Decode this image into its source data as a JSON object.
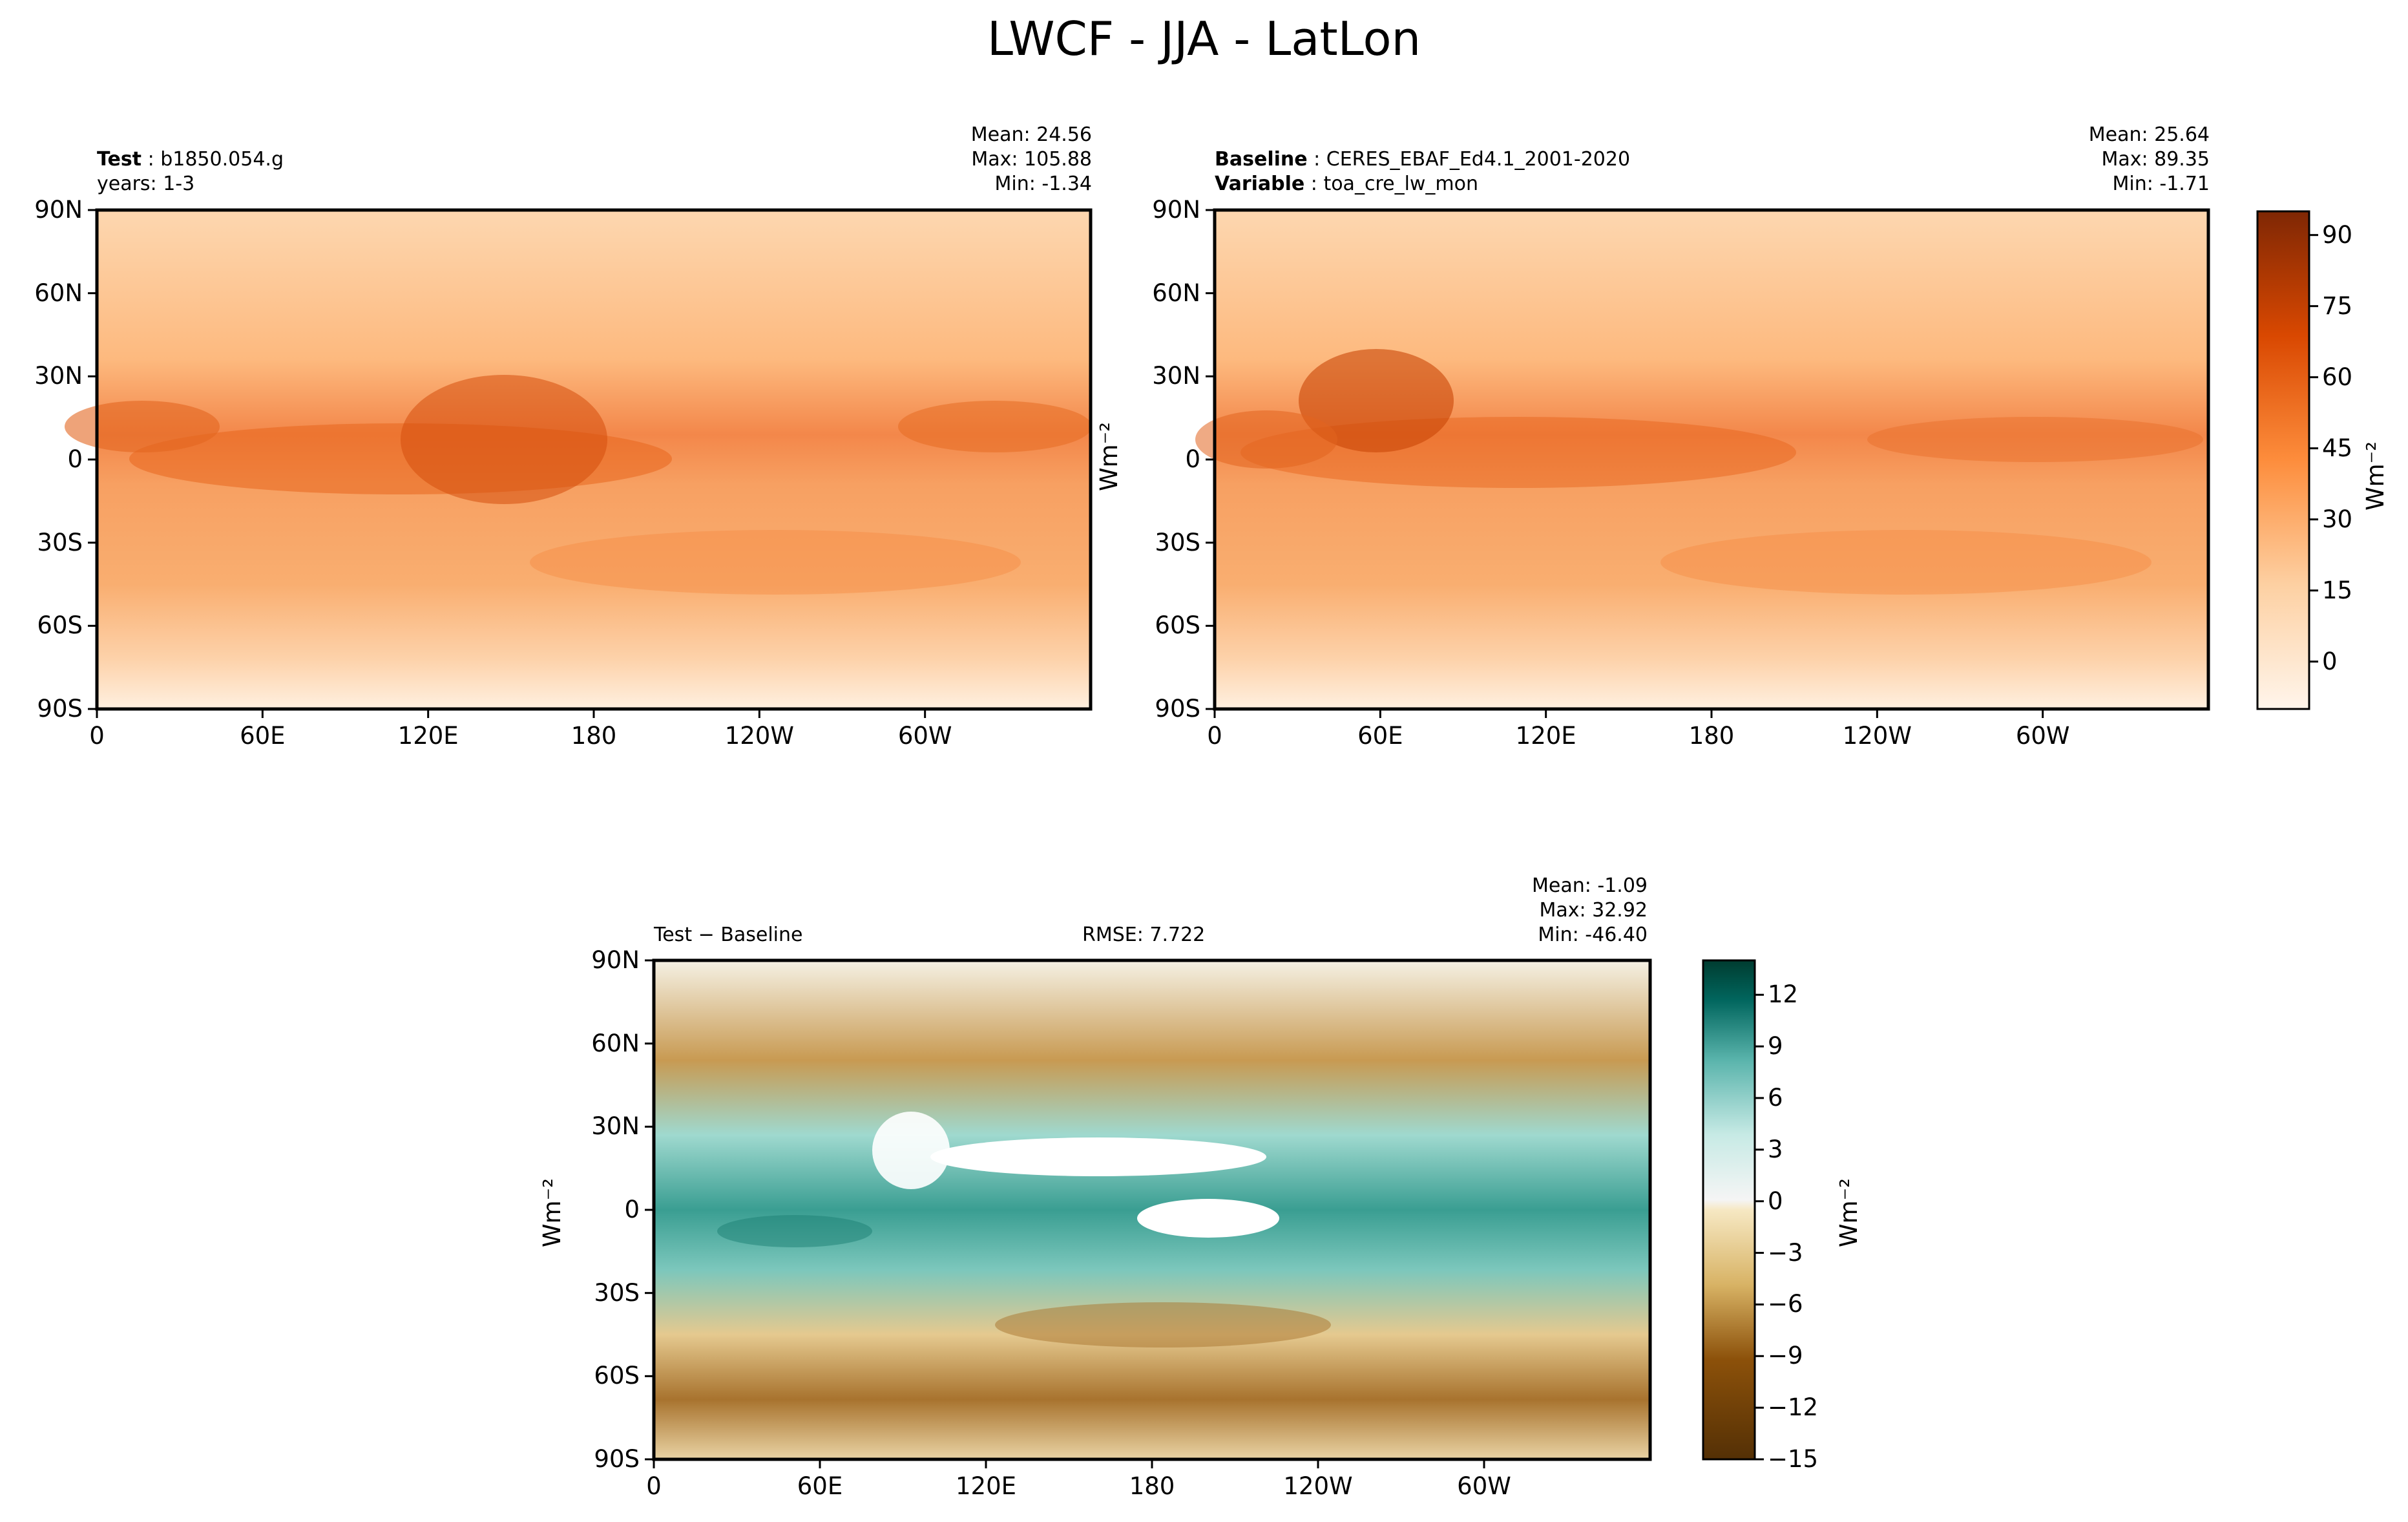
{
  "title": "LWCF - JJA - LatLon",
  "chart_data": [
    {
      "type": "heatmap",
      "id": "test",
      "label_bold": "Test",
      "label_text": "b1850.054.g",
      "label_line2": "years: 1-3",
      "stats": {
        "mean": "Mean: 24.56",
        "max": "Max: 105.88",
        "min": "Min: -1.34"
      },
      "xticks": [
        "0",
        "60E",
        "120E",
        "180",
        "120W",
        "60W"
      ],
      "yticks": [
        "90N",
        "60N",
        "30N",
        "0",
        "30S",
        "60S",
        "90S"
      ],
      "ylabel": "Wm⁻²",
      "xlim": [
        0,
        360
      ],
      "ylim": [
        -90,
        90
      ],
      "colormap": "Oranges"
    },
    {
      "type": "heatmap",
      "id": "baseline",
      "label_bold": "Baseline",
      "label_text": "CERES_EBAF_Ed4.1_2001-2020",
      "label_bold2": "Variable",
      "label_text2": "toa_cre_lw_mon",
      "stats": {
        "mean": "Mean: 25.64",
        "max": "Max: 89.35",
        "min": "Min: -1.71"
      },
      "xticks": [
        "0",
        "60E",
        "120E",
        "180",
        "120W",
        "60W"
      ],
      "yticks": [
        "90N",
        "60N",
        "30N",
        "0",
        "30S",
        "60S",
        "90S"
      ],
      "xlim": [
        0,
        360
      ],
      "ylim": [
        -90,
        90
      ],
      "colormap": "Oranges",
      "colorbar": {
        "ticks": [
          "90",
          "75",
          "60",
          "45",
          "30",
          "15",
          "0"
        ],
        "values": [
          90,
          75,
          60,
          45,
          30,
          15,
          0
        ],
        "range": [
          -10,
          95
        ],
        "label": "Wm⁻²"
      }
    },
    {
      "type": "heatmap",
      "id": "diff",
      "label_bold": "Test − Baseline",
      "rmse": "RMSE: 7.722",
      "stats": {
        "mean": "Mean: -1.09",
        "max": "Max: 32.92",
        "min": "Min: -46.40"
      },
      "xticks": [
        "0",
        "60E",
        "120E",
        "180",
        "120W",
        "60W"
      ],
      "yticks": [
        "90N",
        "60N",
        "30N",
        "0",
        "30S",
        "60S",
        "90S"
      ],
      "ylabel": "Wm⁻²",
      "xlim": [
        0,
        360
      ],
      "ylim": [
        -90,
        90
      ],
      "colormap": "BrBG",
      "colorbar": {
        "ticks": [
          "12",
          "9",
          "6",
          "3",
          "0",
          "−3",
          "−6",
          "−9",
          "−12",
          "−15"
        ],
        "values": [
          12,
          9,
          6,
          3,
          0,
          -3,
          -6,
          -9,
          -12,
          -15
        ],
        "range": [
          -15,
          14
        ],
        "label": "Wm⁻²"
      }
    }
  ],
  "colors": {
    "frame": "#000000",
    "orange_low": "#fff5eb",
    "orange_high": "#7f2704",
    "diff_pos": "#003c30",
    "diff_neg": "#543005"
  }
}
